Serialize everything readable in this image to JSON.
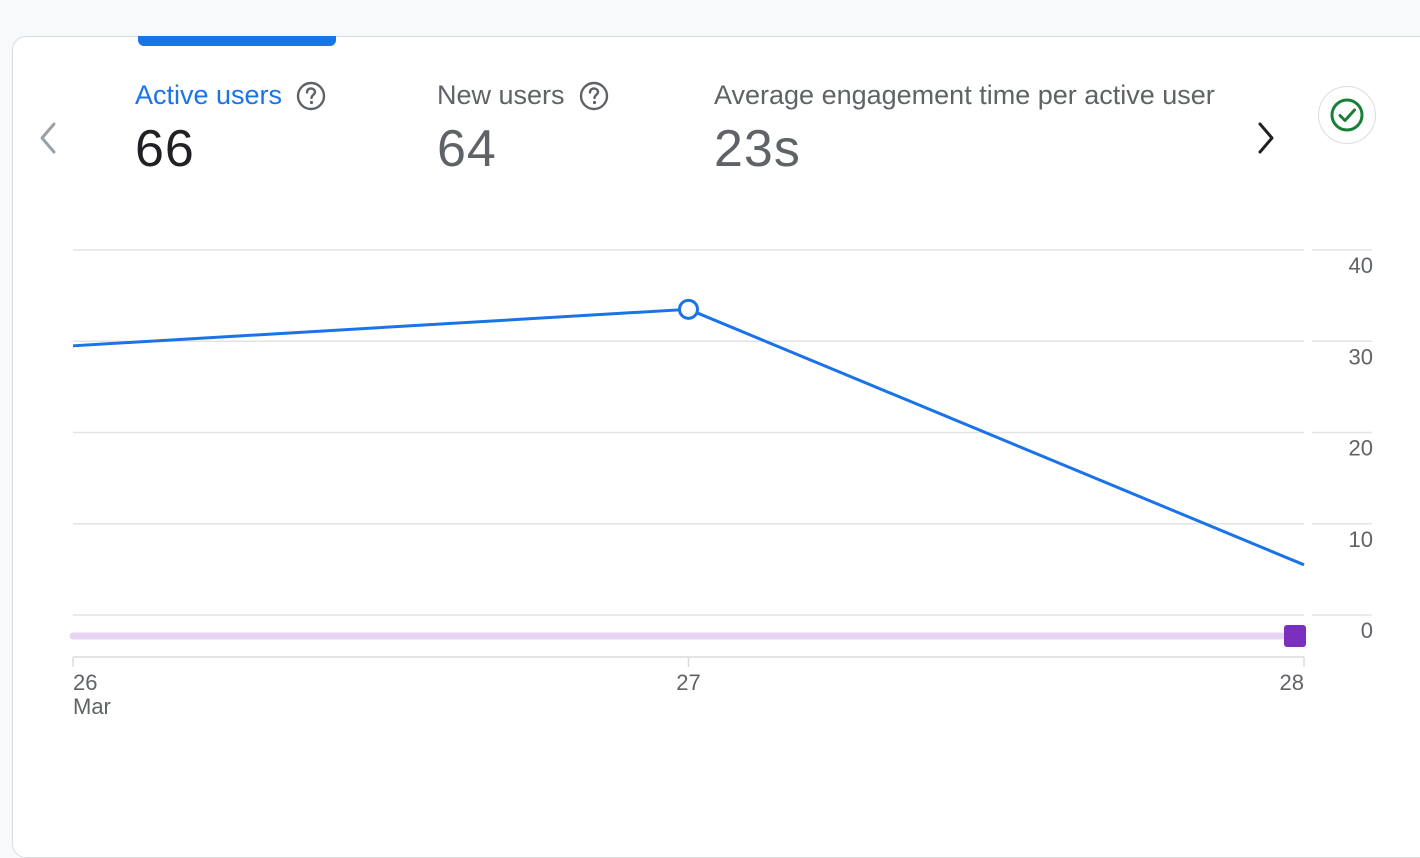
{
  "metrics": [
    {
      "label": "Active users",
      "value": "66",
      "active": true
    },
    {
      "label": "New users",
      "value": "64",
      "active": false
    },
    {
      "label": "Average engagement time per active user",
      "value": "23s",
      "active": false
    }
  ],
  "nav": {
    "prev_icon": "chevron-left-icon",
    "next_icon": "chevron-right-icon"
  },
  "status_icon": "check-circle-icon",
  "colors": {
    "accent": "#1a73e8",
    "line": "#1a73e8",
    "benchmark": "#e8d5f5",
    "marker": "#7b2fbe",
    "success": "#188038"
  },
  "chart_data": {
    "type": "line",
    "x": [
      "26",
      "27",
      "28"
    ],
    "x_sublabels": [
      "Mar",
      "",
      ""
    ],
    "series": [
      {
        "name": "",
        "values": [
          29.5,
          33.5,
          5.5
        ]
      }
    ],
    "baseline": {
      "values": [
        -2.3,
        -2.3,
        -2.3
      ]
    },
    "yticks": [
      "40",
      "30",
      "20",
      "10",
      "0"
    ],
    "ylim": [
      0,
      40
    ],
    "grid": true,
    "y_axis_position": "right"
  }
}
